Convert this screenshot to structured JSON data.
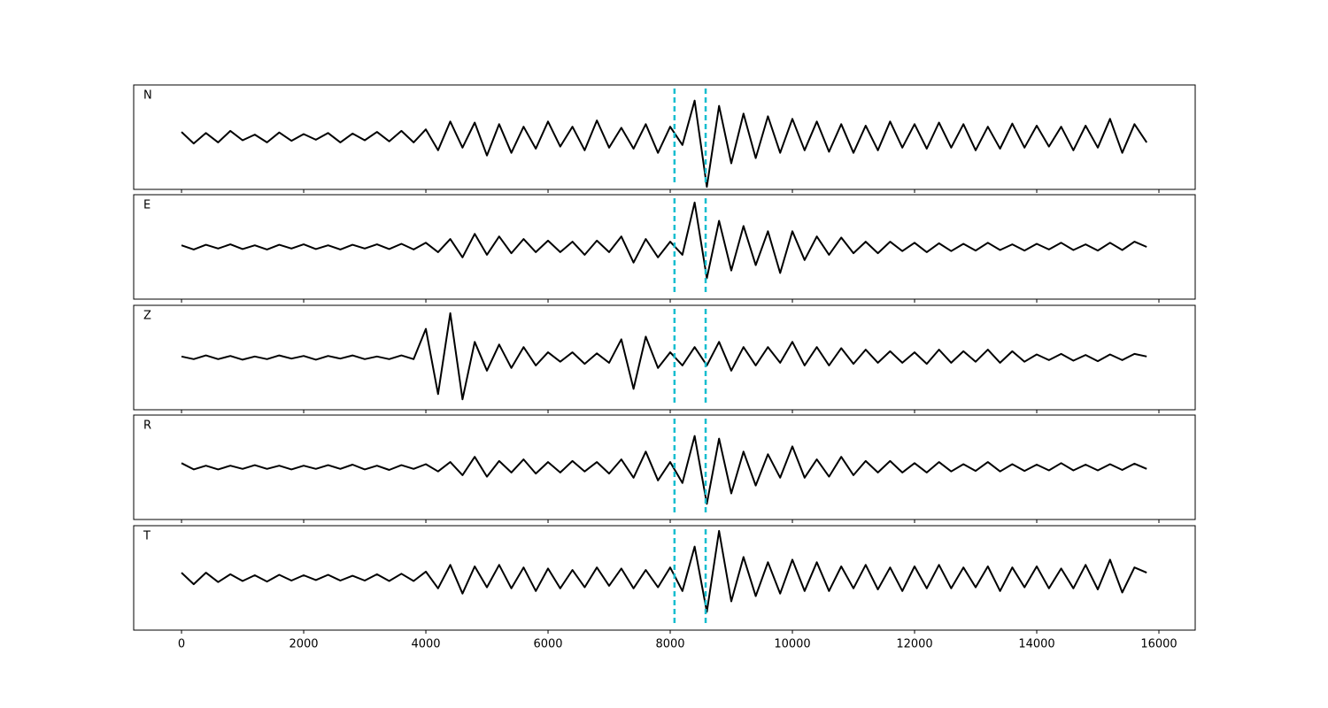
{
  "chart_data": {
    "type": "line",
    "x": [
      0,
      200,
      400,
      600,
      800,
      1000,
      1200,
      1400,
      1600,
      1800,
      2000,
      2200,
      2400,
      2600,
      2800,
      3000,
      3200,
      3400,
      3600,
      3800,
      4000,
      4200,
      4400,
      4600,
      4800,
      5000,
      5200,
      5400,
      5600,
      5800,
      6000,
      6200,
      6400,
      6600,
      6800,
      7000,
      7200,
      7400,
      7600,
      7800,
      8000,
      8200,
      8400,
      8600,
      8800,
      9000,
      9200,
      9400,
      9600,
      9800,
      10000,
      10200,
      10400,
      10600,
      10800,
      11000,
      11200,
      11400,
      11600,
      11800,
      12000,
      12200,
      12400,
      12600,
      12800,
      13000,
      13200,
      13400,
      13600,
      13800,
      14000,
      14200,
      14400,
      14600,
      14800,
      15000,
      15200,
      15400,
      15600,
      15800
    ],
    "series": [
      {
        "name": "N",
        "color": "#000000",
        "values": [
          0.1,
          -0.12,
          0.08,
          -0.1,
          0.12,
          -0.06,
          0.05,
          -0.1,
          0.09,
          -0.07,
          0.06,
          -0.05,
          0.08,
          -0.1,
          0.07,
          -0.06,
          0.1,
          -0.08,
          0.12,
          -0.1,
          0.15,
          -0.25,
          0.3,
          -0.2,
          0.28,
          -0.35,
          0.25,
          -0.3,
          0.2,
          -0.22,
          0.3,
          -0.18,
          0.2,
          -0.25,
          0.32,
          -0.2,
          0.18,
          -0.22,
          0.25,
          -0.3,
          0.2,
          -0.15,
          0.7,
          -0.95,
          0.6,
          -0.5,
          0.45,
          -0.4,
          0.4,
          -0.3,
          0.35,
          -0.25,
          0.3,
          -0.28,
          0.25,
          -0.3,
          0.22,
          -0.25,
          0.3,
          -0.2,
          0.25,
          -0.22,
          0.28,
          -0.2,
          0.25,
          -0.25,
          0.2,
          -0.22,
          0.26,
          -0.2,
          0.22,
          -0.18,
          0.2,
          -0.25,
          0.22,
          -0.2,
          0.35,
          -0.3,
          0.25,
          -0.1
        ]
      },
      {
        "name": "E",
        "color": "#000000",
        "values": [
          0.03,
          -0.05,
          0.04,
          -0.03,
          0.05,
          -0.04,
          0.03,
          -0.05,
          0.04,
          -0.03,
          0.05,
          -0.04,
          0.03,
          -0.05,
          0.04,
          -0.03,
          0.05,
          -0.04,
          0.06,
          -0.05,
          0.08,
          -0.1,
          0.15,
          -0.2,
          0.25,
          -0.15,
          0.2,
          -0.12,
          0.15,
          -0.1,
          0.12,
          -0.1,
          0.1,
          -0.15,
          0.12,
          -0.1,
          0.2,
          -0.3,
          0.15,
          -0.2,
          0.1,
          -0.15,
          0.85,
          -0.6,
          0.5,
          -0.45,
          0.4,
          -0.35,
          0.3,
          -0.5,
          0.3,
          -0.25,
          0.2,
          -0.15,
          0.18,
          -0.12,
          0.1,
          -0.12,
          0.1,
          -0.08,
          0.08,
          -0.1,
          0.07,
          -0.08,
          0.06,
          -0.07,
          0.08,
          -0.06,
          0.05,
          -0.07,
          0.06,
          -0.05,
          0.08,
          -0.06,
          0.05,
          -0.07,
          0.08,
          -0.06,
          0.1,
          0.0
        ]
      },
      {
        "name": "Z",
        "color": "#000000",
        "values": [
          0.02,
          -0.03,
          0.04,
          -0.03,
          0.03,
          -0.04,
          0.02,
          -0.03,
          0.04,
          -0.02,
          0.03,
          -0.04,
          0.03,
          -0.02,
          0.04,
          -0.03,
          0.02,
          -0.03,
          0.04,
          -0.03,
          0.55,
          -0.7,
          0.85,
          -0.8,
          0.3,
          -0.25,
          0.25,
          -0.2,
          0.2,
          -0.15,
          0.1,
          -0.08,
          0.1,
          -0.12,
          0.08,
          -0.1,
          0.35,
          -0.6,
          0.4,
          -0.2,
          0.1,
          -0.15,
          0.2,
          -0.15,
          0.3,
          -0.25,
          0.2,
          -0.15,
          0.2,
          -0.1,
          0.3,
          -0.15,
          0.2,
          -0.15,
          0.18,
          -0.12,
          0.15,
          -0.1,
          0.12,
          -0.1,
          0.1,
          -0.12,
          0.15,
          -0.1,
          0.12,
          -0.08,
          0.15,
          -0.1,
          0.12,
          -0.08,
          0.06,
          -0.05,
          0.07,
          -0.06,
          0.05,
          -0.07,
          0.06,
          -0.05,
          0.07,
          0.02
        ]
      },
      {
        "name": "R",
        "color": "#000000",
        "values": [
          0.08,
          -0.04,
          0.03,
          -0.04,
          0.03,
          -0.03,
          0.04,
          -0.03,
          0.03,
          -0.04,
          0.03,
          -0.03,
          0.04,
          -0.03,
          0.05,
          -0.04,
          0.03,
          -0.05,
          0.04,
          -0.03,
          0.06,
          -0.08,
          0.1,
          -0.15,
          0.2,
          -0.18,
          0.12,
          -0.1,
          0.15,
          -0.12,
          0.1,
          -0.1,
          0.12,
          -0.08,
          0.1,
          -0.12,
          0.15,
          -0.2,
          0.3,
          -0.25,
          0.1,
          -0.3,
          0.6,
          -0.7,
          0.55,
          -0.5,
          0.3,
          -0.35,
          0.25,
          -0.2,
          0.4,
          -0.2,
          0.15,
          -0.18,
          0.2,
          -0.15,
          0.12,
          -0.1,
          0.12,
          -0.1,
          0.08,
          -0.1,
          0.1,
          -0.08,
          0.06,
          -0.07,
          0.1,
          -0.08,
          0.06,
          -0.07,
          0.05,
          -0.06,
          0.08,
          -0.06,
          0.05,
          -0.06,
          0.06,
          -0.05,
          0.07,
          -0.03
        ]
      },
      {
        "name": "T",
        "color": "#000000",
        "values": [
          0.1,
          -0.12,
          0.1,
          -0.08,
          0.07,
          -0.06,
          0.05,
          -0.07,
          0.06,
          -0.05,
          0.05,
          -0.04,
          0.06,
          -0.05,
          0.04,
          -0.05,
          0.07,
          -0.06,
          0.08,
          -0.06,
          0.12,
          -0.2,
          0.25,
          -0.3,
          0.22,
          -0.18,
          0.25,
          -0.2,
          0.2,
          -0.25,
          0.18,
          -0.2,
          0.15,
          -0.18,
          0.2,
          -0.15,
          0.18,
          -0.2,
          0.15,
          -0.18,
          0.2,
          -0.25,
          0.6,
          -0.65,
          0.9,
          -0.45,
          0.4,
          -0.35,
          0.3,
          -0.3,
          0.35,
          -0.25,
          0.3,
          -0.25,
          0.22,
          -0.2,
          0.25,
          -0.22,
          0.2,
          -0.25,
          0.22,
          -0.2,
          0.25,
          -0.2,
          0.2,
          -0.18,
          0.22,
          -0.25,
          0.2,
          -0.18,
          0.22,
          -0.2,
          0.18,
          -0.2,
          0.25,
          -0.22,
          0.35,
          -0.28,
          0.2,
          0.1
        ]
      }
    ],
    "vlines": {
      "x": [
        8070,
        8580
      ],
      "color": "#17becf"
    },
    "xlim": [
      -783,
      16594
    ],
    "xticks": [
      0,
      2000,
      4000,
      6000,
      8000,
      10000,
      12000,
      14000,
      16000
    ],
    "ylim": [
      -1,
      1
    ]
  }
}
